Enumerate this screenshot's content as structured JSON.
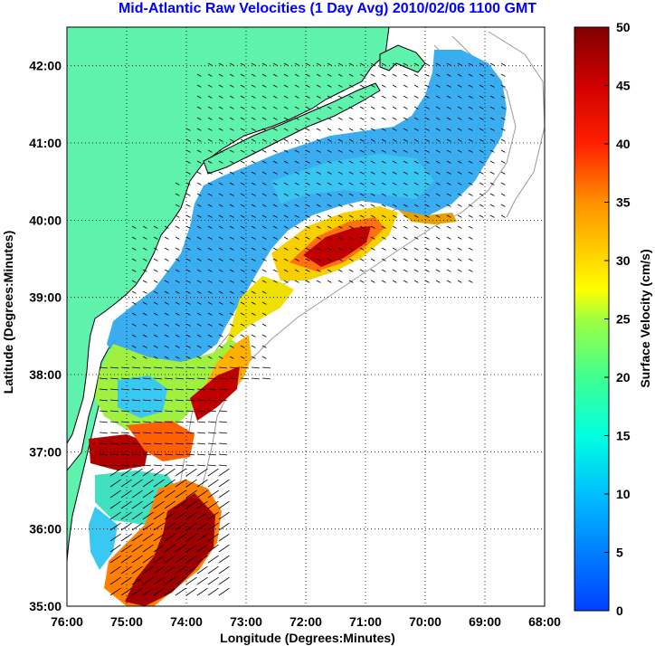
{
  "title": "Mid-Atlantic Raw Velocities (1 Day Avg) 2010/02/06 1100 GMT",
  "map": {
    "xlabel": "Longitude (Degrees:Minutes)",
    "ylabel": "Latitude (Degrees:Minutes)",
    "x_ticks": [
      "76:00",
      "75:00",
      "74:00",
      "73:00",
      "72:00",
      "71:00",
      "70:00",
      "69:00",
      "68:00"
    ],
    "y_ticks": [
      "35:00",
      "36:00",
      "37:00",
      "38:00",
      "39:00",
      "40:00",
      "41:00",
      "42:00"
    ],
    "lon_range": [
      -76,
      -68
    ],
    "lat_range": [
      35,
      42.5
    ],
    "grid": "dotted",
    "land_color": "#5ff2ad",
    "bathymetry_color": "#9a9a9a"
  },
  "colorbar": {
    "label": "Surface Velocity (cm/s)",
    "ticks": [
      "0",
      "5",
      "10",
      "15",
      "20",
      "25",
      "30",
      "35",
      "40",
      "45",
      "50"
    ],
    "range": [
      0,
      50
    ],
    "colormap": "jet"
  }
}
